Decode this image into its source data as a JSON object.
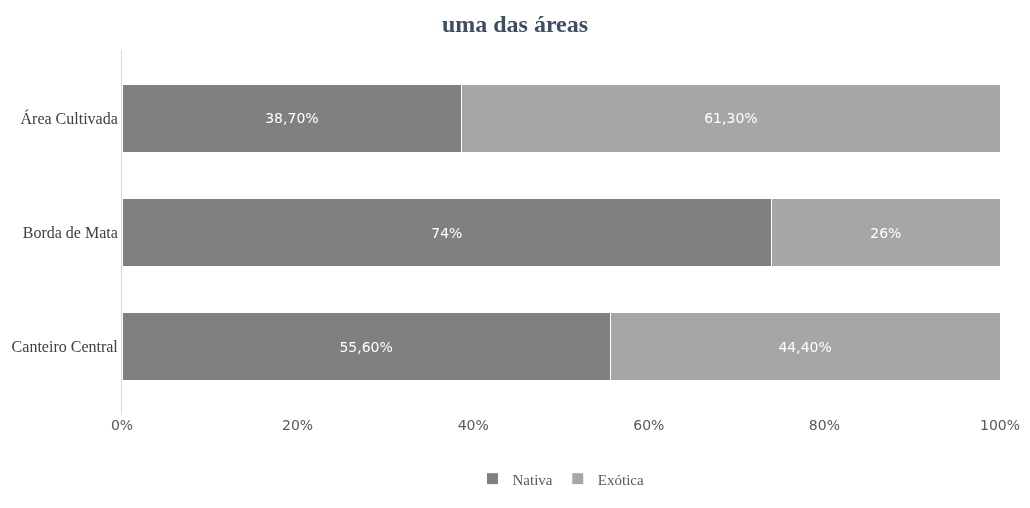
{
  "chart_data": {
    "type": "bar",
    "orientation": "horizontal",
    "stacked": true,
    "title": "uma das áreas",
    "categories": [
      "Área Cultivada",
      "Borda de Mata",
      "Canteiro Central"
    ],
    "series": [
      {
        "name": "Nativa",
        "color": "#808080",
        "values": [
          38.7,
          74,
          55.6
        ],
        "value_labels": [
          "38,70%",
          "74%",
          "55,60%"
        ]
      },
      {
        "name": "Exótica",
        "color": "#a6a6a6",
        "values": [
          61.3,
          26,
          44.4
        ],
        "value_labels": [
          "61,30%",
          "26%",
          "44,40%"
        ]
      }
    ],
    "xlim": [
      0,
      100
    ],
    "xticks": [
      {
        "value": 0,
        "label": "0%"
      },
      {
        "value": 20,
        "label": "20%"
      },
      {
        "value": 40,
        "label": "40%"
      },
      {
        "value": 60,
        "label": "60%"
      },
      {
        "value": 80,
        "label": "80%"
      },
      {
        "value": 100,
        "label": "100%"
      }
    ],
    "grid": false,
    "legend": "bottom"
  }
}
